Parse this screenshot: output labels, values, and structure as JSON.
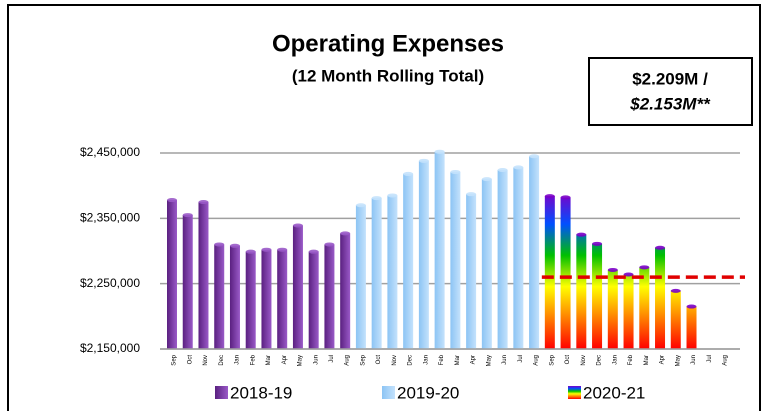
{
  "chart_data": {
    "type": "bar",
    "title": "Operating Expenses",
    "subtitle": "(12 Month Rolling Total)",
    "annotations": [
      "$2.209M /",
      "$2.153M**"
    ],
    "categories": [
      "Sep",
      "Oct",
      "Nov",
      "Dec",
      "Jan",
      "Feb",
      "Mar",
      "Apr",
      "May",
      "Jun",
      "Jul",
      "Aug",
      "Sep",
      "Oct",
      "Nov",
      "Dec",
      "Jan",
      "Feb",
      "Mar",
      "Apr",
      "May",
      "Jun",
      "Jul",
      "Aug",
      "Sep",
      "Oct",
      "Nov",
      "Dec",
      "Jan",
      "Feb",
      "Mar",
      "Apr",
      "May",
      "Jun",
      "Jul",
      "Aug"
    ],
    "series": [
      {
        "name": "2018-19",
        "color": [
          "#5a2080",
          "#9a5ac8"
        ],
        "values": [
          2378000,
          2355000,
          2375000,
          2310000,
          2308000,
          2299000,
          2302000,
          2302000,
          2339000,
          2299000,
          2310000,
          2327000,
          null,
          null,
          null,
          null,
          null,
          null,
          null,
          null,
          null,
          null,
          null,
          null,
          null,
          null,
          null,
          null,
          null,
          null,
          null,
          null,
          null,
          null,
          null,
          null
        ]
      },
      {
        "name": "2019-20",
        "color": [
          "#8cc4f4",
          "#c4e2fc"
        ],
        "values": [
          null,
          null,
          null,
          null,
          null,
          null,
          null,
          null,
          null,
          null,
          null,
          null,
          2370000,
          2381000,
          2385000,
          2418000,
          2438000,
          2452000,
          2421000,
          2387000,
          2410000,
          2424000,
          2428000,
          2445000,
          null,
          null,
          null,
          null,
          null,
          null,
          null,
          null,
          null,
          null,
          null,
          null
        ]
      },
      {
        "name": "2020-21",
        "color": [
          "#7b00c8",
          "#0050ff",
          "#00c000",
          "#ffff00",
          "#ff8000",
          "#ff0000"
        ],
        "values": [
          null,
          null,
          null,
          null,
          null,
          null,
          null,
          null,
          null,
          null,
          null,
          null,
          null,
          null,
          null,
          null,
          null,
          null,
          null,
          null,
          null,
          null,
          null,
          null,
          2384000,
          2382000,
          2325000,
          2311000,
          2271000,
          2264000,
          2275000,
          2305000,
          2239000,
          2215000,
          null,
          null
        ]
      }
    ],
    "reference_line": {
      "value": 2260000,
      "color": "#e00000"
    },
    "ylim": [
      2150000,
      2450000
    ],
    "yticks": [
      {
        "value": 2150000,
        "label": "$2,150,000"
      },
      {
        "value": 2250000,
        "label": "$2,250,000"
      },
      {
        "value": 2350000,
        "label": "$2,350,000"
      },
      {
        "value": 2450000,
        "label": "$2,450,000"
      }
    ],
    "grid": true,
    "legend": "bottom"
  }
}
